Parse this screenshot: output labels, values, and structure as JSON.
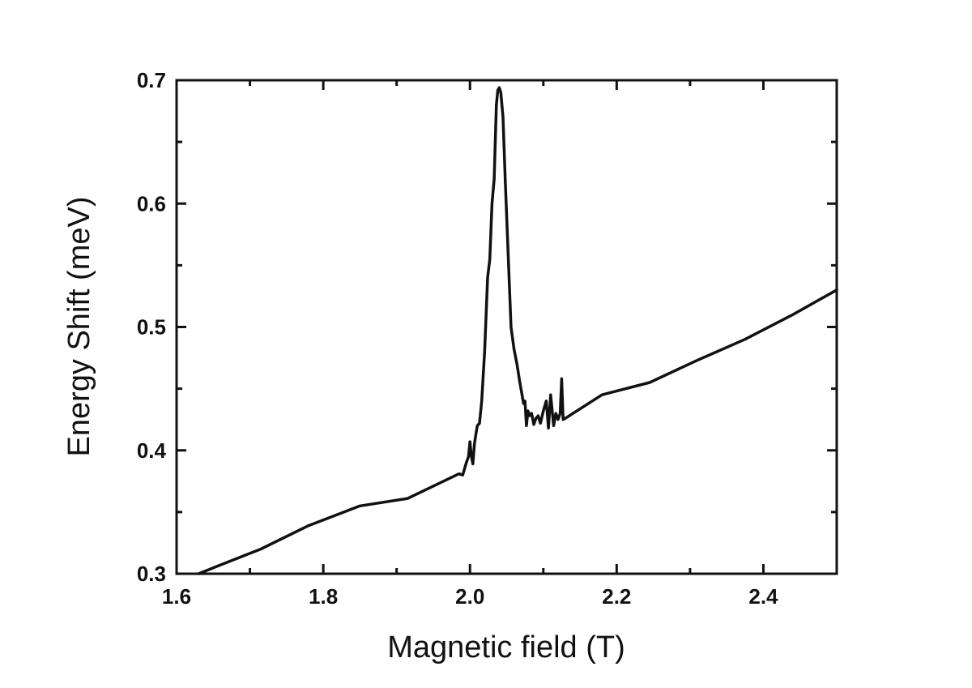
{
  "chart_data": {
    "type": "line",
    "title": "",
    "xlabel": "Magnetic field (T)",
    "ylabel": "Energy Shift (meV)",
    "xlim": [
      1.6,
      2.5
    ],
    "ylim": [
      0.3,
      0.7
    ],
    "x_ticks": [
      "1.6",
      "1.8",
      "2.0",
      "2.2",
      "2.4"
    ],
    "y_ticks": [
      "0.3",
      "0.4",
      "0.5",
      "0.6",
      "0.7"
    ],
    "grid": false,
    "legend": "none",
    "line_color": "#111111",
    "series": [
      {
        "x": [
          1.63,
          1.655,
          1.715,
          1.78,
          1.85,
          1.915,
          1.985,
          1.99,
          1.995,
          1.998,
          2.0,
          2.002,
          2.004,
          2.006,
          2.008,
          2.01,
          2.013,
          2.016,
          2.02,
          2.024,
          2.027,
          2.03,
          2.033,
          2.036,
          2.038,
          2.04,
          2.042,
          2.045,
          2.048,
          2.052,
          2.056,
          2.06,
          2.064,
          2.068,
          2.071,
          2.073,
          2.075,
          2.077,
          2.079,
          2.081,
          2.084,
          2.087,
          2.09,
          2.093,
          2.096,
          2.1,
          2.104,
          2.107,
          2.11,
          2.114,
          2.117,
          2.12,
          2.123,
          2.125,
          2.127,
          2.13,
          2.18,
          2.245,
          2.31,
          2.375,
          2.44,
          2.5
        ],
        "y": [
          0.3,
          0.306,
          0.32,
          0.339,
          0.355,
          0.361,
          0.381,
          0.38,
          0.39,
          0.395,
          0.407,
          0.395,
          0.389,
          0.405,
          0.413,
          0.42,
          0.422,
          0.44,
          0.48,
          0.54,
          0.555,
          0.6,
          0.62,
          0.68,
          0.692,
          0.694,
          0.69,
          0.67,
          0.62,
          0.56,
          0.5,
          0.482,
          0.47,
          0.455,
          0.445,
          0.438,
          0.44,
          0.42,
          0.432,
          0.428,
          0.43,
          0.421,
          0.426,
          0.428,
          0.422,
          0.432,
          0.44,
          0.418,
          0.445,
          0.42,
          0.43,
          0.425,
          0.43,
          0.458,
          0.425,
          0.426,
          0.445,
          0.455,
          0.473,
          0.49,
          0.51,
          0.53
        ]
      }
    ]
  }
}
